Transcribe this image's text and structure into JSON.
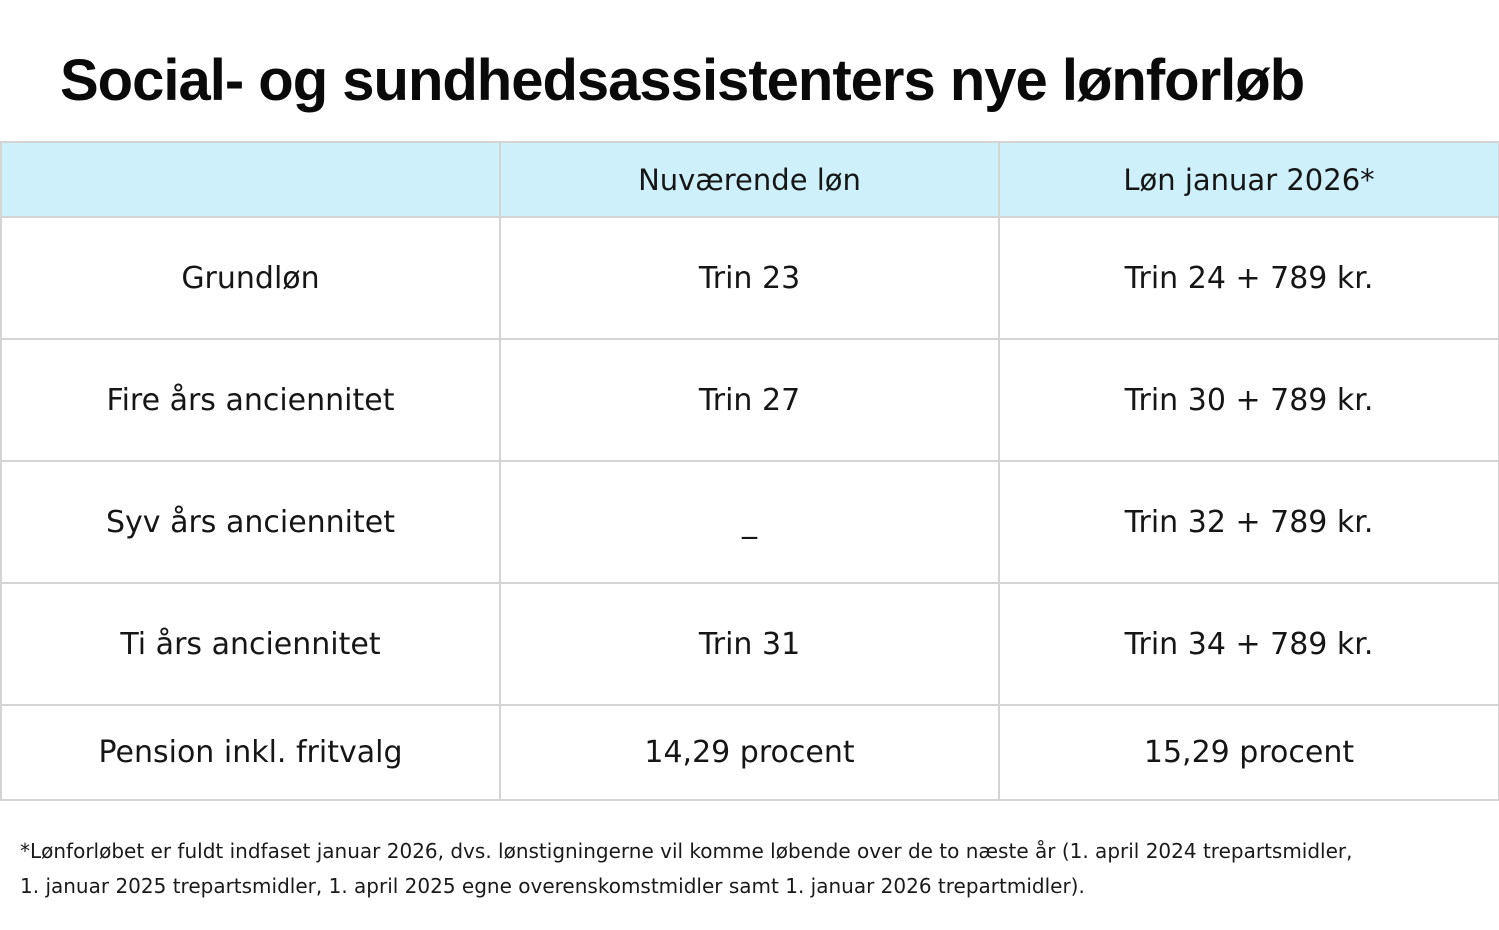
{
  "title": "Social- og sundhedsassistenters nye lønforløb",
  "table": {
    "headers": [
      "",
      "Nuværende løn",
      "Løn januar 2026*"
    ],
    "rows": [
      {
        "label": "Grundløn",
        "current": "Trin 23",
        "new": "Trin 24 + 789 kr."
      },
      {
        "label": "Fire års anciennitet",
        "current": "Trin 27",
        "new": "Trin 30 + 789 kr."
      },
      {
        "label": "Syv års anciennitet",
        "current": "_",
        "new": "Trin 32 + 789 kr."
      },
      {
        "label": "Ti års anciennitet",
        "current": "Trin 31",
        "new": "Trin 34 + 789 kr."
      },
      {
        "label": "Pension inkl. fritvalg",
        "current": "14,29 procent",
        "new": "15,29 procent"
      }
    ]
  },
  "footnote": {
    "line1": "*Lønforløbet er fuldt indfaset januar 2026, dvs. lønstigningerne vil komme løbende over de to næste år (1. april 2024 trepartsmidler,",
    "line2": "1. januar 2025 trepartsmidler, 1. april 2025 egne overenskomstmidler samt 1. januar 2026 trepartmidler)."
  },
  "colors": {
    "header_bg": "#cdf0fb",
    "grid": "#d4d4d4",
    "text": "#111111"
  }
}
